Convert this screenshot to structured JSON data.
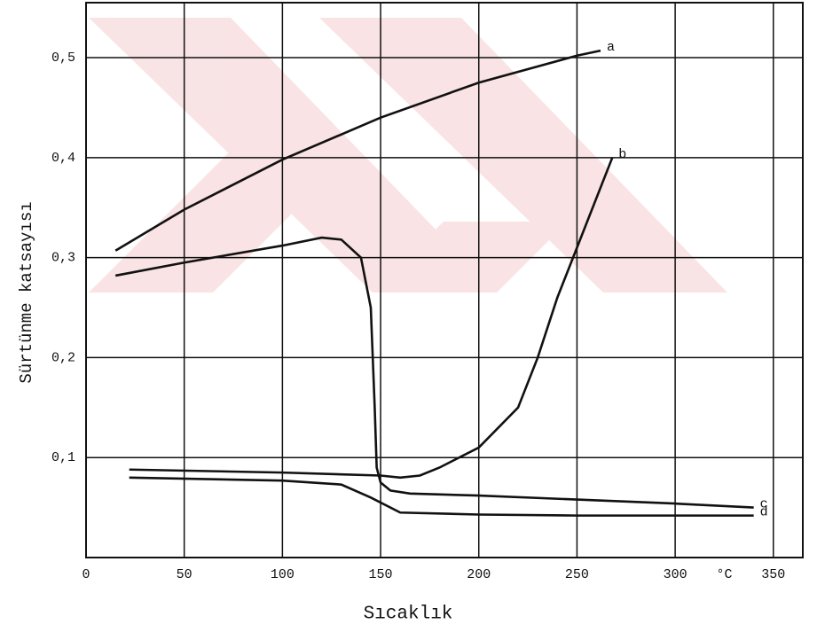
{
  "chart_data": {
    "type": "line",
    "x_label": "Sıcaklık",
    "y_label": "Sürtünme katsayısı",
    "x_unit": "°C",
    "xlim": [
      0,
      365
    ],
    "ylim": [
      0,
      0.555
    ],
    "xticks": [
      0,
      50,
      100,
      150,
      200,
      250,
      300,
      350
    ],
    "yticks": [
      {
        "value": 0.1,
        "label": "0,1"
      },
      {
        "value": 0.2,
        "label": "0,2"
      },
      {
        "value": 0.3,
        "label": "0,3"
      },
      {
        "value": 0.4,
        "label": "0,4"
      },
      {
        "value": 0.5,
        "label": "0,5"
      }
    ],
    "grid": true,
    "series": [
      {
        "name": "a",
        "color": "#111111",
        "x": [
          15,
          50,
          100,
          150,
          200,
          250,
          262
        ],
        "values": [
          0.307,
          0.348,
          0.398,
          0.44,
          0.475,
          0.502,
          0.507
        ]
      },
      {
        "name": "b",
        "color": "#111111",
        "x": [
          22,
          100,
          150,
          160,
          170,
          180,
          200,
          220,
          230,
          240,
          250,
          268
        ],
        "values": [
          0.088,
          0.085,
          0.082,
          0.08,
          0.082,
          0.09,
          0.11,
          0.15,
          0.2,
          0.26,
          0.31,
          0.4
        ]
      },
      {
        "name": "c",
        "color": "#111111",
        "x": [
          15,
          50,
          100,
          120,
          130,
          140,
          145,
          147,
          148,
          150,
          155,
          165,
          200,
          250,
          300,
          340
        ],
        "values": [
          0.282,
          0.295,
          0.312,
          0.32,
          0.318,
          0.3,
          0.25,
          0.15,
          0.09,
          0.075,
          0.067,
          0.064,
          0.062,
          0.058,
          0.054,
          0.05
        ]
      },
      {
        "name": "d",
        "color": "#111111",
        "x": [
          22,
          100,
          130,
          145,
          160,
          200,
          250,
          340
        ],
        "values": [
          0.08,
          0.077,
          0.073,
          0.06,
          0.045,
          0.043,
          0.042,
          0.042
        ]
      }
    ]
  }
}
